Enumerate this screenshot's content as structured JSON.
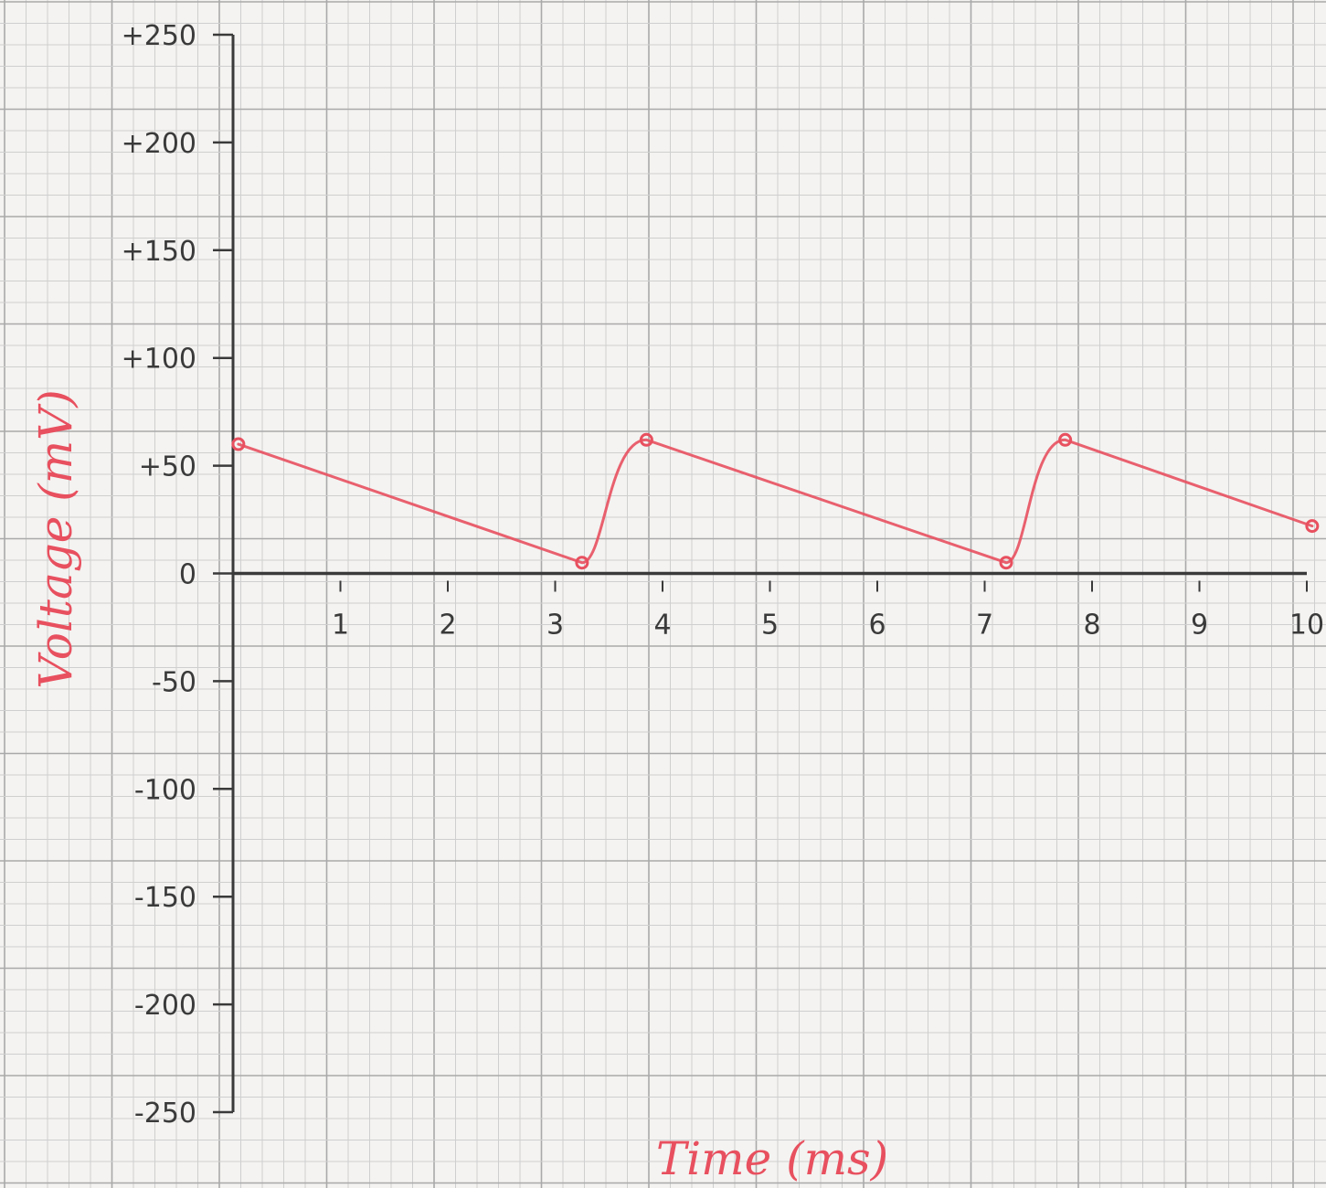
{
  "chart_data": {
    "type": "line",
    "title": "",
    "xlabel": "Time (ms)",
    "ylabel": "Voltage (mV)",
    "xlim": [
      0,
      10
    ],
    "ylim": [
      -250,
      250
    ],
    "x_ticks": [
      "1",
      "2",
      "3",
      "4",
      "5",
      "6",
      "7",
      "8",
      "9",
      "10"
    ],
    "y_ticks": [
      "+250",
      "+200",
      "+150",
      "+100",
      "+50",
      "0",
      "-50",
      "-100",
      "-150",
      "-200",
      "-250"
    ],
    "grid": true,
    "legend": "none",
    "series": [
      {
        "color": "#e8505f",
        "points": [
          {
            "x": 0.05,
            "y": 60
          },
          {
            "x": 3.25,
            "y": 5
          },
          {
            "x": 3.85,
            "y": 62
          },
          {
            "x": 7.2,
            "y": 5
          },
          {
            "x": 7.75,
            "y": 62
          },
          {
            "x": 10.05,
            "y": 22
          }
        ]
      }
    ]
  }
}
